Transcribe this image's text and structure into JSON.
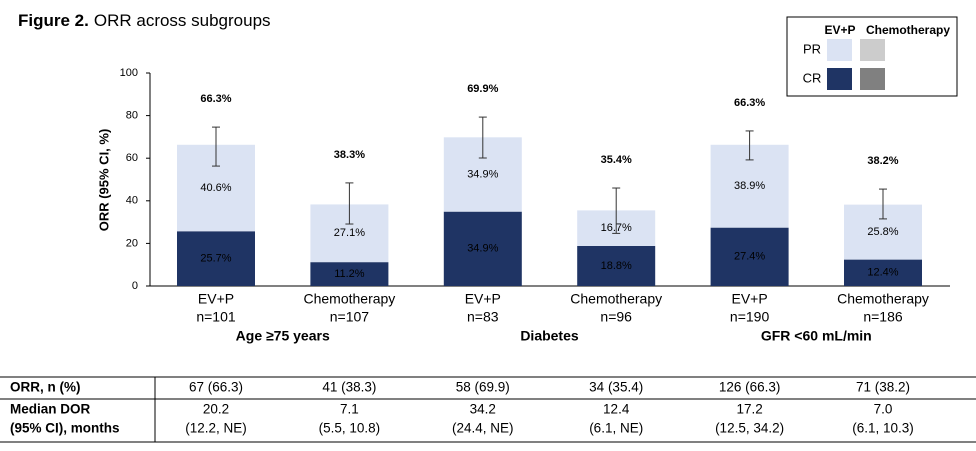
{
  "chart_data": {
    "type": "bar",
    "stacked": true,
    "title_label": "Figure 2.",
    "title": "ORR across subgroups",
    "ylabel": "ORR (95% CI, %)",
    "categories": [
      "EV+P",
      "Chemotherapy",
      "EV+P",
      "Chemotherapy",
      "EV+P",
      "Chemotherapy"
    ],
    "sample_sizes": [
      "n=101",
      "n=107",
      "n=83",
      "n=96",
      "n=190",
      "n=186"
    ],
    "groups": [
      "Age ≥75 years",
      "Diabetes",
      "GFR <60 mL/min"
    ],
    "series": [
      {
        "name": "CR",
        "color": "#1f3464",
        "values": [
          25.7,
          11.2,
          34.9,
          18.8,
          27.4,
          12.4
        ],
        "value_labels": [
          "25.7%",
          "11.2%",
          "34.9%",
          "18.8%",
          "27.4%",
          "12.4%"
        ]
      },
      {
        "name": "PR",
        "color": "#dbe3f3",
        "values": [
          40.6,
          27.1,
          34.9,
          16.7,
          38.9,
          25.8
        ],
        "value_labels": [
          "40.6%",
          "27.1%",
          "34.9%",
          "16.7%",
          "38.9%",
          "25.8%"
        ]
      }
    ],
    "totals": {
      "values": [
        66.3,
        38.3,
        69.9,
        35.4,
        66.3,
        38.2
      ],
      "value_labels": [
        "66.3%",
        "38.3%",
        "69.9%",
        "35.4%",
        "66.3%",
        "38.2%"
      ]
    },
    "ci_lower": [
      56.3,
      29.1,
      60.1,
      24.7,
      59.2,
      31.5
    ],
    "ci_upper": [
      74.6,
      48.4,
      79.3,
      46.0,
      72.8,
      45.5
    ],
    "legend": {
      "columns": [
        "EV+P",
        "Chemotherapy"
      ],
      "chemotherapy_colors": [
        "#808080",
        "#cccccc"
      ]
    },
    "ylim": [
      0,
      100
    ],
    "yticks": [
      0,
      20,
      40,
      60,
      80,
      100
    ]
  },
  "table": {
    "rows": [
      [
        "ORR, n (%)",
        "67 (66.3)",
        "41 (38.3)",
        "58 (69.9)",
        "34 (35.4)",
        "126 (66.3)",
        "71 (38.2)"
      ],
      [
        [
          "Median DOR",
          "(95% CI), months"
        ],
        [
          "20.2",
          "(12.2, NE)"
        ],
        [
          "7.1",
          "(5.5, 10.8)"
        ],
        [
          "34.2",
          "(24.4, NE)"
        ],
        [
          "12.4",
          "(6.1, NE)"
        ],
        [
          "17.2",
          "(12.5, 34.2)"
        ],
        [
          "7.0",
          "(6.1, 10.3)"
        ]
      ]
    ]
  }
}
